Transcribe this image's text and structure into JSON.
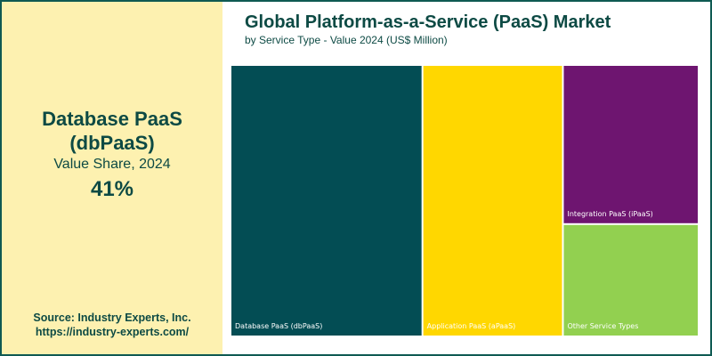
{
  "highlight": {
    "name": "Database PaaS (dbPaaS)",
    "subtitle": "Value Share, 2024",
    "value": "41%"
  },
  "source": {
    "line1": "Source: Industry Experts, Inc.",
    "line2": "https://industry-experts.com/"
  },
  "chart_data": {
    "type": "treemap",
    "title": "Global Platform-as-a-Service (PaaS) Market",
    "subtitle": "by Service Type - Value 2024 (US$ Million)",
    "series": [
      {
        "name": "Database PaaS (dbPaaS)",
        "share": 41,
        "color": "#034d54"
      },
      {
        "name": "Application PaaS (aPaaS)",
        "share": 30,
        "color": "#ffd700"
      },
      {
        "name": "Integration PaaS (iPaaS)",
        "share": 17,
        "color": "#6e1570"
      },
      {
        "name": "Other Service Types",
        "share": 12,
        "color": "#92d050"
      }
    ]
  }
}
